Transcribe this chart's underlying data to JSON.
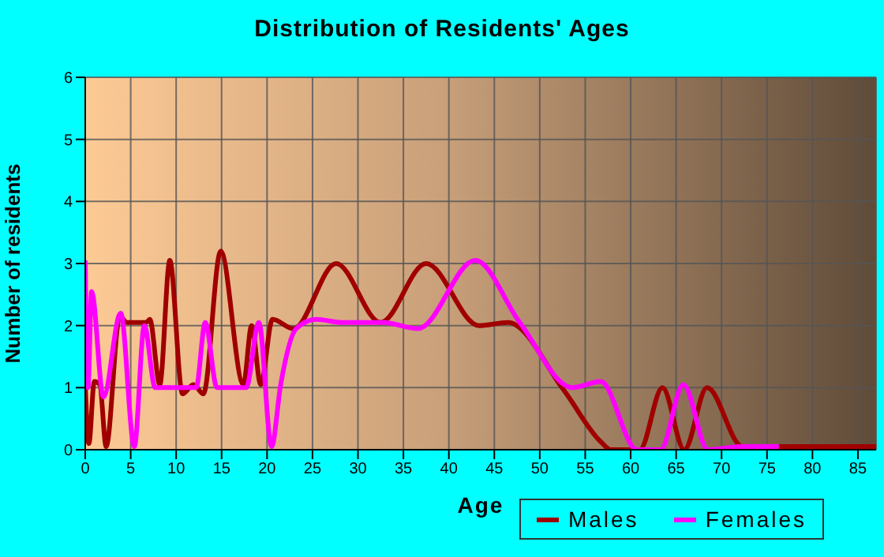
{
  "chart_data": {
    "type": "line",
    "title": "Distribution of Residents' Ages",
    "xlabel": "Age",
    "ylabel": "Number of residents",
    "xlim": [
      0,
      87
    ],
    "xticks": [
      0,
      5,
      10,
      15,
      20,
      25,
      30,
      35,
      40,
      45,
      50,
      55,
      60,
      65,
      70,
      75,
      80,
      85
    ],
    "ylim": [
      0,
      6
    ],
    "yticks": [
      0,
      1,
      2,
      3,
      4,
      5,
      6
    ],
    "grid": true,
    "legend": "bottom right",
    "marker": "none",
    "line_style": "solid",
    "series": [
      {
        "name": "Males",
        "color": "#a00000",
        "x": [
          0,
          0.4,
          1,
          1.6,
          2.3,
          3.8,
          4.6,
          6.7,
          7.1,
          8.2,
          9.3,
          10.7,
          11.9,
          13,
          14.9,
          17.4,
          18.3,
          19.3,
          20.6,
          22.9,
          27.6,
          32.5,
          37.5,
          43.3,
          46.5,
          52.6,
          56.7,
          57.8,
          61,
          63.5,
          65.9,
          68.4,
          72.3,
          80,
          87
        ],
        "values": [
          1.05,
          0.1,
          1.1,
          1.05,
          0.05,
          2.15,
          2.05,
          2.05,
          2.1,
          1.05,
          3.05,
          0.9,
          1.05,
          0.9,
          3.2,
          1.05,
          2.0,
          1.05,
          2.1,
          1.95,
          3.0,
          2.05,
          3.0,
          2.0,
          2.05,
          0.97,
          0.13,
          0,
          0,
          1.0,
          0,
          1.0,
          0.05,
          0.05,
          0.05
        ]
      },
      {
        "name": "Females",
        "color": "#ff00ff",
        "x": [
          0,
          0.3,
          0.7,
          2.0,
          3.9,
          5.4,
          6.5,
          7.7,
          12.2,
          13.2,
          14.5,
          17.7,
          19.1,
          20.5,
          21.5,
          23.2,
          25.4,
          28.2,
          32.8,
          36.6,
          42.9,
          47.8,
          53.6,
          56.7,
          60.7,
          63.3,
          65.8,
          68.5,
          72.3,
          76.3
        ],
        "values": [
          3.05,
          1.0,
          2.55,
          0.85,
          2.2,
          0.05,
          2.0,
          1.0,
          1.0,
          2.05,
          1.0,
          1.0,
          2.05,
          0.05,
          1.05,
          1.95,
          2.1,
          2.05,
          2.05,
          1.95,
          3.05,
          2.05,
          1.0,
          1.1,
          0,
          0,
          1.05,
          0,
          0.05,
          0.05
        ]
      }
    ]
  }
}
